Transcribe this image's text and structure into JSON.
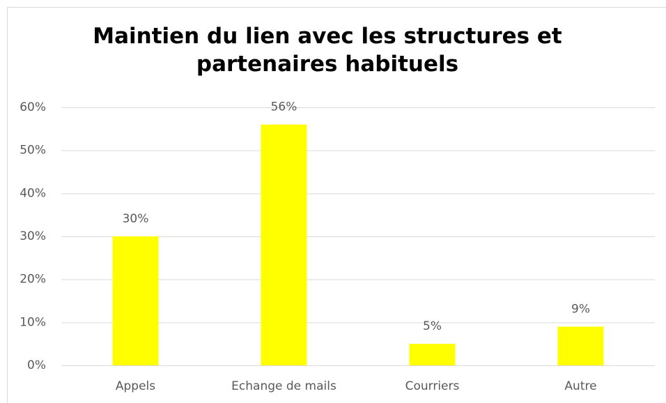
{
  "chart_data": {
    "type": "bar",
    "title": "Maintien du lien avec les structures et partenaires habituels",
    "categories": [
      "Appels",
      "Echange de mails",
      "Courriers",
      "Autre"
    ],
    "values": [
      30,
      56,
      5,
      9
    ],
    "value_labels": [
      "30%",
      "56%",
      "5%",
      "9%"
    ],
    "color": "#ffff00",
    "ylim": [
      0,
      60
    ],
    "yticks": [
      {
        "value": 0,
        "label": "0%"
      },
      {
        "value": 10,
        "label": "10%"
      },
      {
        "value": 20,
        "label": "20%"
      },
      {
        "value": 30,
        "label": "30%"
      },
      {
        "value": 40,
        "label": "40%"
      },
      {
        "value": 50,
        "label": "50%"
      },
      {
        "value": 60,
        "label": "60%"
      }
    ],
    "grid": true
  }
}
